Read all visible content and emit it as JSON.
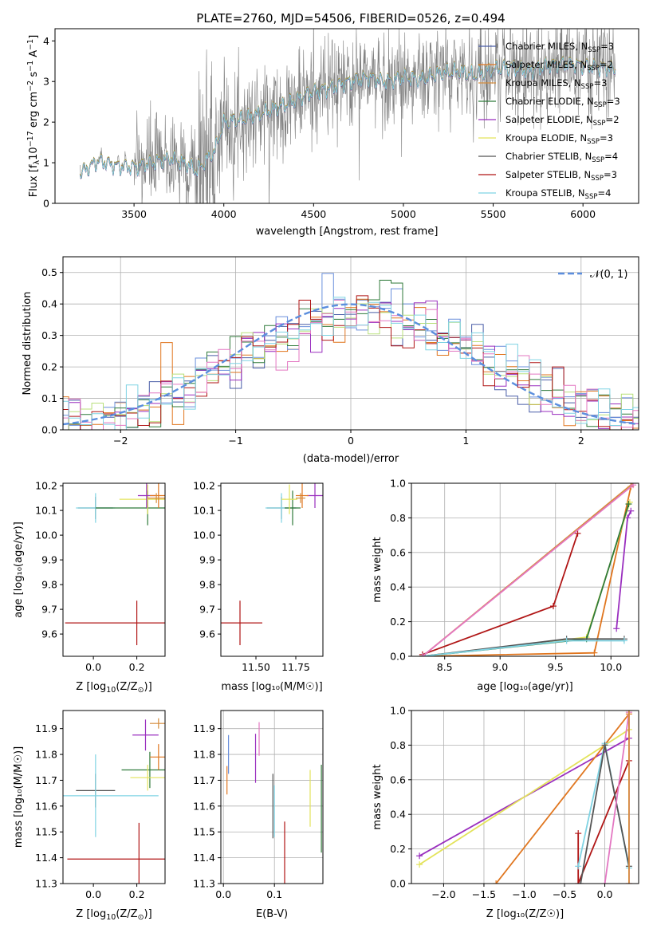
{
  "figure": {
    "title": "PLATE=2760, MJD=54506, FIBERID=0526, z=0.494",
    "colors": {
      "Chabrier MILES": "#4a5ea8",
      "Salpeter MILES": "#e0761f",
      "Kroupa MILES": "#d58c3c",
      "Chabrier ELODIE": "#2f7a3a",
      "Salpeter ELODIE": "#9a2fbf",
      "Kroupa ELODIE": "#e3e35a",
      "Chabrier STELIB": "#555555",
      "Salpeter STELIB": "#b01515",
      "Kroupa STELIB": "#7fd3e3",
      "hist_extra1": "#6a8fdc",
      "hist_extra2": "#e377c2",
      "hist_extra3": "#b8e07a",
      "normal_curve": "#5b8ede"
    }
  },
  "chart_data": [
    {
      "type": "line",
      "id": "spectrum",
      "xlabel": "wavelength [Angstrom, rest frame]",
      "ylabel": "Flux [f$_\\lambda$10$^{-17}$ erg cm$^{-2}$ s$^{-1}$ A$^{-1}$]",
      "xlim": [
        3060,
        6310
      ],
      "ylim": [
        0,
        4.3
      ],
      "xticks": [
        "3500",
        "4000",
        "4500",
        "5000",
        "5500",
        "6000"
      ],
      "yticks": [
        "0",
        "1",
        "2",
        "3",
        "4"
      ],
      "grid": false,
      "legend_position": "upper-right",
      "continuum_x": [
        3200,
        3300,
        3350,
        3400,
        3500,
        3600,
        3700,
        3800,
        3850,
        3950,
        4000,
        4100,
        4200,
        4300,
        4400,
        4500,
        4600,
        4700,
        4800,
        4900,
        5000,
        5100,
        5200,
        5300,
        5400,
        5500,
        5600,
        5700,
        5800,
        5900,
        6000,
        6100,
        6180
      ],
      "continuum_y": [
        0.75,
        1.05,
        1.0,
        0.92,
        0.9,
        1.0,
        1.12,
        0.95,
        0.8,
        1.3,
        2.0,
        2.05,
        2.2,
        2.35,
        2.55,
        2.75,
        2.85,
        3.0,
        3.1,
        3.0,
        3.1,
        3.05,
        3.2,
        3.25,
        3.15,
        3.3,
        3.35,
        3.25,
        3.4,
        3.45,
        3.4,
        3.35,
        3.3
      ],
      "data_noise_amplitude": 0.6,
      "series": [
        {
          "name": "Chabrier MILES, N$_{SSP}$=3",
          "label_main": "Chabrier MILES, N",
          "label_sub": "SSP",
          "label_tail": "=3",
          "offset": 0.0
        },
        {
          "name": "Salpeter MILES, N$_{SSP}$=2",
          "label_main": "Salpeter MILES, N",
          "label_sub": "SSP",
          "label_tail": "=2",
          "offset": 0.01
        },
        {
          "name": "Kroupa MILES, N$_{SSP}$=3",
          "label_main": "Kroupa MILES, N",
          "label_sub": "SSP",
          "label_tail": "=3",
          "offset": -0.01
        },
        {
          "name": "Chabrier ELODIE, N$_{SSP}$=3",
          "label_main": "Chabrier ELODIE, N",
          "label_sub": "SSP",
          "label_tail": "=3",
          "offset": 0.02
        },
        {
          "name": "Salpeter ELODIE, N$_{SSP}$=2",
          "label_main": "Salpeter ELODIE, N",
          "label_sub": "SSP",
          "label_tail": "=2",
          "offset": -0.02
        },
        {
          "name": "Kroupa ELODIE, N$_{SSP}$=3",
          "label_main": "Kroupa ELODIE, N",
          "label_sub": "SSP",
          "label_tail": "=3",
          "offset": 0.015
        },
        {
          "name": "Chabrier STELIB, N$_{SSP}$=4",
          "label_main": "Chabrier STELIB, N",
          "label_sub": "SSP",
          "label_tail": "=4",
          "offset": -0.015
        },
        {
          "name": "Salpeter STELIB, N$_{SSP}$=3",
          "label_main": "Salpeter STELIB, N",
          "label_sub": "SSP",
          "label_tail": "=3",
          "offset": 0.005
        },
        {
          "name": "Kroupa STELIB, N$_{SSP}$=4",
          "label_main": "Kroupa STELIB, N",
          "label_sub": "SSP",
          "label_tail": "=4",
          "offset": -0.005
        }
      ]
    },
    {
      "type": "bar",
      "id": "residual_hist",
      "xlabel": "(data-model)/error",
      "ylabel": "Normed distribution",
      "xlim": [
        -2.5,
        2.5
      ],
      "ylim": [
        0,
        0.55
      ],
      "xticks": [
        "−2",
        "−1",
        "0",
        "1",
        "2"
      ],
      "yticks": [
        "0.0",
        "0.1",
        "0.2",
        "0.3",
        "0.4",
        "0.5"
      ],
      "grid": true,
      "legend": "𝒩(0, 1)",
      "legend_position": "upper-right",
      "bin_width": 0.1,
      "normal_mean": 0,
      "normal_sigma": 1
    },
    {
      "type": "scatter",
      "id": "age_vs_Z",
      "xlabel_main": "Z [log",
      "xlabel_sub": "10",
      "xlabel_tail": "(Z/Z",
      "xlabel_sub2": "⊙",
      "xlabel_end": ")]",
      "ylabel": "age  [log₁₀(age/yr)]",
      "xlim": [
        -0.14,
        0.33
      ],
      "ylim": [
        9.51,
        10.21
      ],
      "xticks": [
        "0.0",
        "0.2"
      ],
      "yticks": [
        "9.6",
        "9.7",
        "9.8",
        "9.9",
        "10.0",
        "10.1",
        "10.2"
      ],
      "grid": false,
      "points": [
        {
          "series": "Salpeter STELIB",
          "x": 0.2,
          "y": 9.645,
          "xerr": 0.33,
          "yerr": 0.09
        },
        {
          "series": "Chabrier STELIB",
          "x": 0.01,
          "y": 10.11,
          "xerr": 0.08,
          "yerr": 0.045
        },
        {
          "series": "Kroupa STELIB",
          "x": 0.01,
          "y": 10.11,
          "xerr": 0.09,
          "yerr": 0.06
        },
        {
          "series": "Chabrier ELODIE",
          "x": 0.25,
          "y": 10.11,
          "xerr": 0.24,
          "yerr": 0.07
        },
        {
          "series": "Kroupa ELODIE",
          "x": 0.25,
          "y": 10.145,
          "xerr": 0.13,
          "yerr": 0.06
        },
        {
          "series": "Salpeter ELODIE",
          "x": 0.245,
          "y": 10.16,
          "xerr": 0.04,
          "yerr": 0.05
        },
        {
          "series": "Salpeter MILES",
          "x": 0.3,
          "y": 10.16,
          "xerr": 0.04,
          "yerr": 0.05
        },
        {
          "series": "Kroupa MILES",
          "x": 0.29,
          "y": 10.15,
          "xerr": 0.04,
          "yerr": 0.02
        }
      ]
    },
    {
      "type": "scatter",
      "id": "age_vs_mass",
      "xlabel": "mass [log₁₀(M/M☉)]",
      "xlim": [
        11.28,
        11.92
      ],
      "ylim": [
        9.51,
        10.21
      ],
      "xticks": [
        "11.50",
        "11.75"
      ],
      "yticks": [
        "9.6",
        "9.7",
        "9.8",
        "9.9",
        "10.0",
        "10.1",
        "10.2"
      ],
      "grid": false,
      "points": [
        {
          "series": "Salpeter STELIB",
          "x": 11.4,
          "y": 9.645,
          "xerr": 0.14,
          "yerr": 0.09
        },
        {
          "series": "Chabrier STELIB",
          "x": 11.66,
          "y": 10.11,
          "xerr": 0.09,
          "yerr": 0.045
        },
        {
          "series": "Kroupa STELIB",
          "x": 11.66,
          "y": 10.11,
          "xerr": 0.1,
          "yerr": 0.06
        },
        {
          "series": "Chabrier ELODIE",
          "x": 11.73,
          "y": 10.11,
          "xerr": 0.05,
          "yerr": 0.07
        },
        {
          "series": "Kroupa ELODIE",
          "x": 11.71,
          "y": 10.145,
          "xerr": 0.05,
          "yerr": 0.06
        },
        {
          "series": "Salpeter ELODIE",
          "x": 11.87,
          "y": 10.16,
          "xerr": 0.05,
          "yerr": 0.05
        },
        {
          "series": "Salpeter MILES",
          "x": 11.79,
          "y": 10.16,
          "xerr": 0.04,
          "yerr": 0.05
        },
        {
          "series": "Kroupa MILES",
          "x": 11.78,
          "y": 10.15,
          "xerr": 0.03,
          "yerr": 0.02
        }
      ]
    },
    {
      "type": "line",
      "id": "weight_vs_age",
      "xlabel": "age  [log₁₀(age/yr)]",
      "ylabel": "mass weight",
      "xlim": [
        8.2,
        10.25
      ],
      "ylim": [
        0,
        1.0
      ],
      "xticks": [
        "8.5",
        "9.0",
        "9.5",
        "10.0"
      ],
      "yticks": [
        "0.0",
        "0.2",
        "0.4",
        "0.6",
        "0.8",
        "1.0"
      ],
      "grid": true,
      "series": [
        {
          "name": "Salpeter STELIB",
          "x": [
            8.3,
            9.48,
            9.7
          ],
          "y": [
            0.01,
            0.29,
            0.71
          ]
        },
        {
          "name": "Salpeter MILES",
          "x": [
            8.3,
            9.85,
            10.18
          ],
          "y": [
            0.0,
            0.02,
            0.98
          ]
        },
        {
          "name": "Kroupa MILES",
          "x": [
            8.3,
            10.2
          ],
          "y": [
            0.0,
            1.0
          ]
        },
        {
          "name": "Salpeter ELODIE",
          "x": [
            10.05,
            10.15,
            10.18
          ],
          "y": [
            0.16,
            0.8,
            0.84
          ]
        },
        {
          "name": "Kroupa ELODIE",
          "x": [
            8.3,
            9.78,
            10.17
          ],
          "y": [
            0.0,
            0.11,
            0.89
          ]
        },
        {
          "name": "Chabrier ELODIE",
          "x": [
            8.3,
            9.78,
            10.16
          ],
          "y": [
            0.0,
            0.1,
            0.88
          ]
        },
        {
          "name": "Chabrier STELIB",
          "x": [
            8.3,
            9.6,
            10.12
          ],
          "y": [
            0.0,
            0.1,
            0.1
          ]
        },
        {
          "name": "Kroupa STELIB",
          "x": [
            8.3,
            9.6,
            10.12
          ],
          "y": [
            0.0,
            0.09,
            0.09
          ]
        },
        {
          "name": "hist_extra2",
          "x": [
            8.3,
            10.2
          ],
          "y": [
            0.0,
            0.99
          ]
        }
      ]
    },
    {
      "type": "scatter",
      "id": "mass_vs_Z",
      "xlabel_main": "Z [log",
      "xlabel_sub": "10",
      "xlabel_tail": "(Z/Z",
      "xlabel_sub2": "⊙",
      "xlabel_end": ")]",
      "ylabel": "mass [log₁₀(M/M☉)]",
      "xlim": [
        -0.14,
        0.33
      ],
      "ylim": [
        11.3,
        11.97
      ],
      "xticks": [
        "0.0",
        "0.2"
      ],
      "yticks": [
        "11.3",
        "11.4",
        "11.5",
        "11.6",
        "11.7",
        "11.8",
        "11.9"
      ],
      "grid": false,
      "points": [
        {
          "series": "Salpeter STELIB",
          "x": 0.21,
          "y": 11.395,
          "xerr": 0.33,
          "yerr": 0.14
        },
        {
          "series": "Chabrier STELIB",
          "x": 0.01,
          "y": 11.66,
          "xerr": 0.09,
          "yerr": 0.065
        },
        {
          "series": "Kroupa STELIB",
          "x": 0.01,
          "y": 11.64,
          "xerr": 0.29,
          "yerr": 0.16
        },
        {
          "series": "Chabrier ELODIE",
          "x": 0.26,
          "y": 11.74,
          "xerr": 0.13,
          "yerr": 0.07
        },
        {
          "series": "Kroupa ELODIE",
          "x": 0.25,
          "y": 11.71,
          "xerr": 0.08,
          "yerr": 0.05
        },
        {
          "series": "Salpeter ELODIE",
          "x": 0.24,
          "y": 11.875,
          "xerr": 0.06,
          "yerr": 0.06
        },
        {
          "series": "Salpeter MILES",
          "x": 0.3,
          "y": 11.79,
          "xerr": 0.04,
          "yerr": 0.05
        },
        {
          "series": "Kroupa MILES",
          "x": 0.3,
          "y": 11.92,
          "xerr": 0.04,
          "yerr": 0.02
        }
      ]
    },
    {
      "type": "scatter",
      "id": "mass_vs_ebv",
      "xlabel": "E(B-V)",
      "xlim": [
        -0.005,
        0.195
      ],
      "ylim": [
        11.3,
        11.97
      ],
      "xticks": [
        "0.0",
        "0.1"
      ],
      "yticks": [
        "11.3",
        "11.4",
        "11.5",
        "11.6",
        "11.7",
        "11.8",
        "11.9"
      ],
      "grid": true,
      "points": [
        {
          "series": "hist_extra1",
          "x": 0.01,
          "y": 11.8,
          "yerr": 0.075
        },
        {
          "series": "Salpeter MILES",
          "x": 0.007,
          "y": 11.7,
          "yerr": 0.055
        },
        {
          "series": "Salpeter ELODIE",
          "x": 0.063,
          "y": 11.785,
          "yerr": 0.095
        },
        {
          "series": "hist_extra2",
          "x": 0.07,
          "y": 11.86,
          "yerr": 0.065
        },
        {
          "series": "Chabrier STELIB",
          "x": 0.097,
          "y": 11.6,
          "yerr": 0.125
        },
        {
          "series": "Kroupa STELIB",
          "x": 0.1,
          "y": 11.58,
          "yerr": 0.1
        },
        {
          "series": "Salpeter STELIB",
          "x": 0.12,
          "y": 11.39,
          "yerr": 0.15
        },
        {
          "series": "Kroupa ELODIE",
          "x": 0.17,
          "y": 11.63,
          "yerr": 0.11
        },
        {
          "series": "Chabrier ELODIE",
          "x": 0.192,
          "y": 11.59,
          "yerr": 0.17
        }
      ]
    },
    {
      "type": "line",
      "id": "weight_vs_Z",
      "xlabel": "Z [log₁₀(Z/Z☉)]",
      "ylabel": "mass weight",
      "xlim": [
        -2.4,
        0.42
      ],
      "ylim": [
        0,
        1.0
      ],
      "xticks": [
        "−2.0",
        "−1.5",
        "−1.0",
        "−0.5",
        "0.0"
      ],
      "yticks": [
        "0.0",
        "0.2",
        "0.4",
        "0.6",
        "0.8",
        "1.0"
      ],
      "grid": true,
      "series": [
        {
          "name": "Salpeter ELODIE",
          "x": [
            -2.3,
            0.3
          ],
          "y": [
            0.16,
            0.84
          ]
        },
        {
          "name": "Kroupa ELODIE",
          "x": [
            -2.3,
            0.3
          ],
          "y": [
            0.11,
            0.89
          ]
        },
        {
          "name": "Salpeter MILES",
          "x": [
            -1.35,
            0.3
          ],
          "y": [
            0.0,
            0.98
          ]
        },
        {
          "name": "Salpeter STELIB",
          "x": [
            -0.33,
            -0.33,
            0.3
          ],
          "y": [
            0.29,
            0.0,
            0.71
          ]
        },
        {
          "name": "Kroupa STELIB",
          "x": [
            -0.33,
            0.0,
            0.3
          ],
          "y": [
            0.1,
            0.81,
            0.09
          ]
        },
        {
          "name": "Chabrier STELIB",
          "x": [
            -0.3,
            0.0,
            0.3
          ],
          "y": [
            0.0,
            0.8,
            0.1
          ]
        },
        {
          "name": "hist_extra2",
          "x": [
            0.0,
            0.3,
            0.3
          ],
          "y": [
            0.0,
            0.99,
            0.0
          ]
        },
        {
          "name": "Kroupa MILES",
          "x": [
            0.3,
            0.3
          ],
          "y": [
            0.0,
            1.0
          ]
        }
      ]
    }
  ]
}
